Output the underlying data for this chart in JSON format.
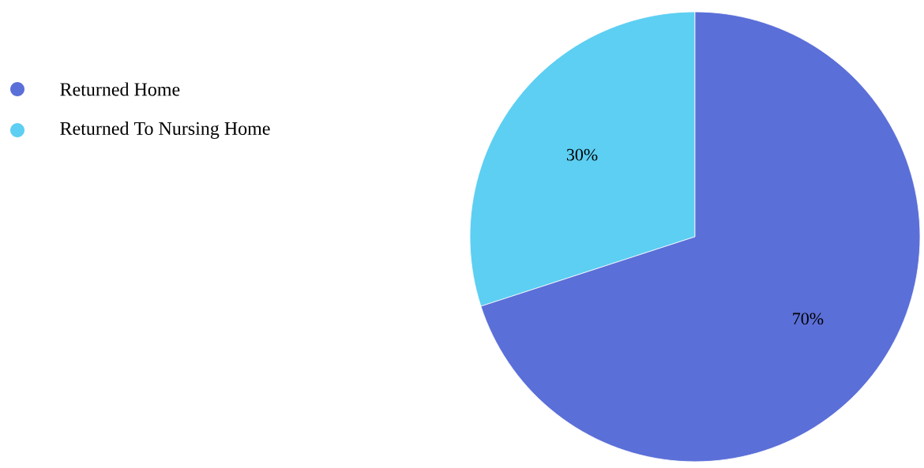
{
  "chart_data": {
    "type": "pie",
    "categories": [
      "Returned Home",
      "Returned To Nursing Home"
    ],
    "values": [
      70,
      30
    ],
    "colors": [
      "#5b6fd8",
      "#5ccff2"
    ],
    "value_labels": [
      "70%",
      "30%"
    ],
    "legend": "top left"
  }
}
